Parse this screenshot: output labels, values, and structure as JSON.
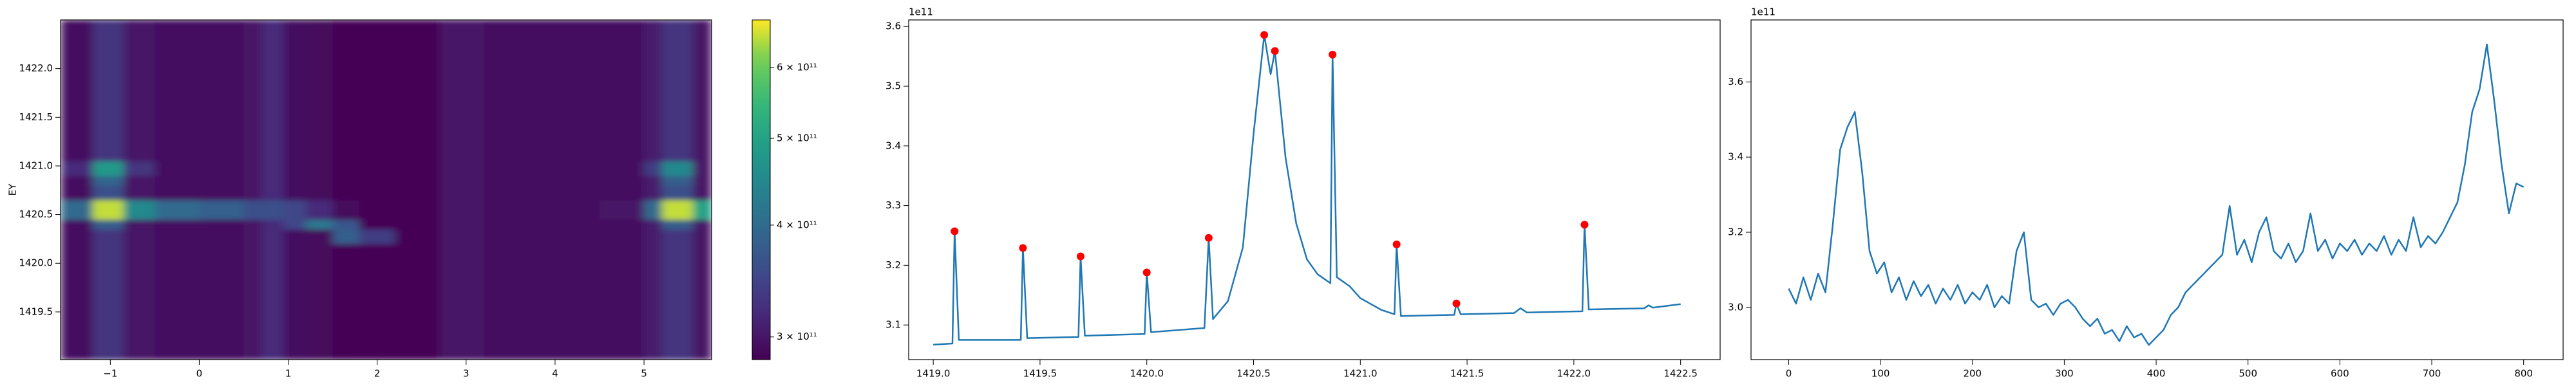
{
  "chart_data": [
    {
      "type": "heatmap",
      "ylabel": "EY",
      "cmap": "viridis",
      "xlim": [
        -1.56,
        5.76
      ],
      "ylim": [
        1419.01,
        1422.5
      ],
      "xticks": [
        {
          "value": -1,
          "label": "−1"
        },
        0,
        1,
        2,
        3,
        4,
        5
      ],
      "yticks": [
        1419.5,
        {
          "value": 1420,
          "label": "1420.0"
        },
        1420.5,
        {
          "value": 1421,
          "label": "1421.0"
        },
        1421.5,
        {
          "value": 1422,
          "label": "1422.0"
        }
      ],
      "x_edges": [
        -1.56,
        -1.2,
        -0.85,
        -0.5,
        0,
        0.5,
        0.7,
        0.95,
        1.2,
        1.5,
        1.8,
        2.2,
        2.7,
        3.2,
        3.6,
        4,
        4.5,
        5,
        5.2,
        5.55,
        5.76
      ],
      "y_edges": [
        1419.01,
        1419.5,
        1420.0,
        1420.2,
        1420.35,
        1420.45,
        1420.65,
        1420.8,
        1420.9,
        1421.05,
        1421.5,
        1422.0,
        1422.5
      ],
      "z": [
        [
          295000000000.0,
          330000000000.0,
          300000000000.0,
          295000000000.0,
          295000000000.0,
          300000000000.0,
          320000000000.0,
          295000000000.0,
          290000000000.0,
          285000000000.0,
          285000000000.0,
          285000000000.0,
          300000000000.0,
          295000000000.0,
          295000000000.0,
          295000000000.0,
          295000000000.0,
          305000000000.0,
          330000000000.0,
          300000000000.0
        ],
        [
          295000000000.0,
          330000000000.0,
          300000000000.0,
          295000000000.0,
          295000000000.0,
          300000000000.0,
          320000000000.0,
          295000000000.0,
          290000000000.0,
          285000000000.0,
          285000000000.0,
          285000000000.0,
          300000000000.0,
          295000000000.0,
          295000000000.0,
          295000000000.0,
          295000000000.0,
          305000000000.0,
          330000000000.0,
          300000000000.0
        ],
        [
          295000000000.0,
          330000000000.0,
          300000000000.0,
          295000000000.0,
          295000000000.0,
          300000000000.0,
          320000000000.0,
          295000000000.0,
          290000000000.0,
          285000000000.0,
          285000000000.0,
          285000000000.0,
          300000000000.0,
          295000000000.0,
          295000000000.0,
          295000000000.0,
          295000000000.0,
          305000000000.0,
          330000000000.0,
          300000000000.0
        ],
        [
          295000000000.0,
          330000000000.0,
          300000000000.0,
          295000000000.0,
          295000000000.0,
          300000000000.0,
          320000000000.0,
          295000000000.0,
          290000000000.0,
          380000000000.0,
          340000000000.0,
          285000000000.0,
          300000000000.0,
          295000000000.0,
          295000000000.0,
          295000000000.0,
          295000000000.0,
          305000000000.0,
          330000000000.0,
          300000000000.0
        ],
        [
          295000000000.0,
          380000000000.0,
          300000000000.0,
          295000000000.0,
          295000000000.0,
          300000000000.0,
          320000000000.0,
          350000000000.0,
          420000000000.0,
          370000000000.0,
          285000000000.0,
          285000000000.0,
          300000000000.0,
          295000000000.0,
          295000000000.0,
          295000000000.0,
          295000000000.0,
          305000000000.0,
          380000000000.0,
          300000000000.0
        ],
        [
          400000000000.0,
          650000000000.0,
          450000000000.0,
          400000000000.0,
          380000000000.0,
          360000000000.0,
          360000000000.0,
          350000000000.0,
          320000000000.0,
          290000000000.0,
          285000000000.0,
          285000000000.0,
          300000000000.0,
          295000000000.0,
          295000000000.0,
          295000000000.0,
          300000000000.0,
          400000000000.0,
          650000000000.0,
          500000000000.0
        ],
        [
          295000000000.0,
          360000000000.0,
          300000000000.0,
          295000000000.0,
          295000000000.0,
          300000000000.0,
          320000000000.0,
          295000000000.0,
          290000000000.0,
          285000000000.0,
          285000000000.0,
          285000000000.0,
          300000000000.0,
          295000000000.0,
          295000000000.0,
          295000000000.0,
          295000000000.0,
          305000000000.0,
          360000000000.0,
          300000000000.0
        ],
        [
          295000000000.0,
          390000000000.0,
          300000000000.0,
          295000000000.0,
          295000000000.0,
          300000000000.0,
          320000000000.0,
          295000000000.0,
          290000000000.0,
          285000000000.0,
          285000000000.0,
          285000000000.0,
          300000000000.0,
          295000000000.0,
          295000000000.0,
          295000000000.0,
          295000000000.0,
          305000000000.0,
          380000000000.0,
          300000000000.0
        ],
        [
          320000000000.0,
          480000000000.0,
          330000000000.0,
          295000000000.0,
          295000000000.0,
          300000000000.0,
          320000000000.0,
          295000000000.0,
          290000000000.0,
          285000000000.0,
          285000000000.0,
          285000000000.0,
          300000000000.0,
          295000000000.0,
          295000000000.0,
          295000000000.0,
          295000000000.0,
          340000000000.0,
          450000000000.0,
          300000000000.0
        ],
        [
          295000000000.0,
          330000000000.0,
          300000000000.0,
          295000000000.0,
          295000000000.0,
          300000000000.0,
          320000000000.0,
          295000000000.0,
          290000000000.0,
          285000000000.0,
          285000000000.0,
          285000000000.0,
          300000000000.0,
          295000000000.0,
          295000000000.0,
          295000000000.0,
          295000000000.0,
          305000000000.0,
          330000000000.0,
          300000000000.0
        ],
        [
          295000000000.0,
          330000000000.0,
          300000000000.0,
          295000000000.0,
          295000000000.0,
          300000000000.0,
          320000000000.0,
          295000000000.0,
          290000000000.0,
          285000000000.0,
          285000000000.0,
          285000000000.0,
          300000000000.0,
          295000000000.0,
          295000000000.0,
          295000000000.0,
          295000000000.0,
          305000000000.0,
          330000000000.0,
          300000000000.0
        ],
        [
          295000000000.0,
          330000000000.0,
          300000000000.0,
          295000000000.0,
          295000000000.0,
          300000000000.0,
          320000000000.0,
          295000000000.0,
          290000000000.0,
          285000000000.0,
          285000000000.0,
          285000000000.0,
          300000000000.0,
          295000000000.0,
          295000000000.0,
          295000000000.0,
          295000000000.0,
          305000000000.0,
          330000000000.0,
          300000000000.0
        ]
      ],
      "colorbar": {
        "scale": "log",
        "clim": [
          283000000000.0,
          678000000000.0
        ],
        "ticks": [
          {
            "value": 300000000000.0,
            "label": "3 × 10¹¹"
          },
          {
            "value": 400000000000.0,
            "label": "4 × 10¹¹"
          },
          {
            "value": 500000000000.0,
            "label": "5 × 10¹¹"
          },
          {
            "value": 600000000000.0,
            "label": "6 × 10¹¹"
          }
        ]
      }
    },
    {
      "type": "line",
      "y_offset_label": "1e11",
      "xlim": [
        1418.885,
        1422.685
      ],
      "ylim": [
        304200000000.0,
        361100000000.0
      ],
      "xticks": [
        {
          "value": 1419,
          "label": "1419.0"
        },
        1419.5,
        {
          "value": 1420,
          "label": "1420.0"
        },
        1420.5,
        {
          "value": 1421,
          "label": "1421.0"
        },
        1421.5,
        {
          "value": 1422,
          "label": "1422.0"
        },
        1422.5
      ],
      "yticks": [
        {
          "value": 310000000000.0,
          "label": "3.1"
        },
        {
          "value": 320000000000.0,
          "label": "3.2"
        },
        {
          "value": 330000000000.0,
          "label": "3.3"
        },
        {
          "value": 340000000000.0,
          "label": "3.4"
        },
        {
          "value": 350000000000.0,
          "label": "3.5"
        },
        {
          "value": 360000000000.0,
          "label": "3.6"
        }
      ],
      "series": [
        {
          "style": "line",
          "color": "#1f77b4",
          "x": [
            1419.0,
            1419.09,
            1419.1,
            1419.12,
            1419.41,
            1419.42,
            1419.44,
            1419.68,
            1419.69,
            1419.71,
            1419.99,
            1420.0,
            1420.02,
            1420.27,
            1420.29,
            1420.31,
            1420.38,
            1420.45,
            1420.5,
            1420.55,
            1420.58,
            1420.6,
            1420.65,
            1420.7,
            1420.75,
            1420.8,
            1420.86,
            1420.87,
            1420.89,
            1420.95,
            1421.0,
            1421.1,
            1421.16,
            1421.17,
            1421.19,
            1421.44,
            1421.45,
            1421.47,
            1421.72,
            1421.75,
            1421.78,
            1422.04,
            1422.05,
            1422.07,
            1422.33,
            1422.35,
            1422.37,
            1422.5
          ],
          "values": [
            306700000000.0,
            306900000000.0,
            325700000000.0,
            307500000000.0,
            307500000000.0,
            322900000000.0,
            307800000000.0,
            308000000000.0,
            321500000000.0,
            308200000000.0,
            308500000000.0,
            318800000000.0,
            308800000000.0,
            309500000000.0,
            324600000000.0,
            311000000000.0,
            314000000000.0,
            323000000000.0,
            342000000000.0,
            358600000000.0,
            352000000000.0,
            355900000000.0,
            338000000000.0,
            327000000000.0,
            321000000000.0,
            318500000000.0,
            317000000000.0,
            355300000000.0,
            318000000000.0,
            316500000000.0,
            314500000000.0,
            312500000000.0,
            311800000000.0,
            323500000000.0,
            311500000000.0,
            311700000000.0,
            313600000000.0,
            311800000000.0,
            312000000000.0,
            312800000000.0,
            312100000000.0,
            312300000000.0,
            326800000000.0,
            312600000000.0,
            312800000000.0,
            313300000000.0,
            312900000000.0,
            313500000000.0
          ]
        },
        {
          "style": "markers",
          "color": "red",
          "x": [
            1419.1,
            1419.42,
            1419.69,
            1420.0,
            1420.29,
            1420.55,
            1420.6,
            1420.87,
            1421.17,
            1421.45,
            1422.05
          ],
          "values": [
            325700000000.0,
            322900000000.0,
            321500000000.0,
            318800000000.0,
            324600000000.0,
            358600000000.0,
            355900000000.0,
            355300000000.0,
            323500000000.0,
            313600000000.0,
            326800000000.0
          ]
        }
      ]
    },
    {
      "type": "line",
      "y_offset_label": "1e11",
      "xlim": [
        -41,
        843
      ],
      "ylim": [
        286100000000.0,
        376500000000.0
      ],
      "xticks": [
        0,
        100,
        200,
        300,
        400,
        500,
        600,
        700,
        800
      ],
      "yticks": [
        {
          "value": 300000000000.0,
          "label": "3.0"
        },
        {
          "value": 320000000000.0,
          "label": "3.2"
        },
        {
          "value": 340000000000.0,
          "label": "3.4"
        },
        {
          "value": 360000000000.0,
          "label": "3.6"
        }
      ],
      "series": [
        {
          "style": "line",
          "color": "#1f77b4",
          "x": [
            0,
            8,
            16,
            24,
            32,
            40,
            48,
            56,
            64,
            72,
            80,
            88,
            96,
            104,
            112,
            120,
            128,
            136,
            144,
            152,
            160,
            168,
            176,
            184,
            192,
            200,
            208,
            216,
            224,
            232,
            240,
            248,
            256,
            264,
            272,
            280,
            288,
            296,
            304,
            312,
            320,
            328,
            336,
            344,
            352,
            360,
            368,
            376,
            384,
            392,
            400,
            408,
            416,
            424,
            432,
            440,
            448,
            456,
            464,
            472,
            480,
            488,
            496,
            504,
            512,
            520,
            528,
            536,
            544,
            552,
            560,
            568,
            576,
            584,
            592,
            600,
            608,
            616,
            624,
            632,
            640,
            648,
            656,
            664,
            672,
            680,
            688,
            696,
            704,
            712,
            720,
            728,
            736,
            744,
            752,
            760,
            768,
            776,
            784,
            792,
            800
          ],
          "values": [
            305000000000.0,
            301000000000.0,
            308000000000.0,
            302000000000.0,
            309000000000.0,
            304000000000.0,
            322000000000.0,
            342000000000.0,
            348000000000.0,
            352000000000.0,
            336000000000.0,
            315000000000.0,
            309000000000.0,
            312000000000.0,
            304000000000.0,
            308000000000.0,
            302000000000.0,
            307000000000.0,
            303000000000.0,
            306000000000.0,
            301000000000.0,
            305000000000.0,
            302000000000.0,
            306000000000.0,
            301000000000.0,
            304000000000.0,
            302000000000.0,
            306000000000.0,
            300000000000.0,
            303000000000.0,
            301000000000.0,
            315000000000.0,
            320000000000.0,
            302000000000.0,
            300000000000.0,
            301000000000.0,
            298000000000.0,
            301000000000.0,
            302000000000.0,
            300000000000.0,
            297000000000.0,
            295000000000.0,
            297000000000.0,
            293000000000.0,
            294000000000.0,
            291000000000.0,
            295000000000.0,
            292000000000.0,
            293000000000.0,
            290000000000.0,
            292000000000.0,
            294000000000.0,
            298000000000.0,
            300000000000.0,
            304000000000.0,
            306000000000.0,
            308000000000.0,
            310000000000.0,
            312000000000.0,
            314000000000.0,
            327000000000.0,
            314000000000.0,
            318000000000.0,
            312000000000.0,
            320000000000.0,
            324000000000.0,
            315000000000.0,
            313000000000.0,
            317000000000.0,
            312000000000.0,
            315000000000.0,
            325000000000.0,
            315000000000.0,
            318000000000.0,
            313000000000.0,
            317000000000.0,
            315000000000.0,
            318000000000.0,
            314000000000.0,
            317000000000.0,
            315000000000.0,
            319000000000.0,
            314000000000.0,
            318000000000.0,
            315000000000.0,
            324000000000.0,
            316000000000.0,
            319000000000.0,
            317000000000.0,
            320000000000.0,
            324000000000.0,
            328000000000.0,
            338000000000.0,
            352000000000.0,
            358000000000.0,
            370000000000.0,
            355000000000.0,
            338000000000.0,
            325000000000.0,
            333000000000.0,
            332000000000.0
          ]
        }
      ]
    }
  ]
}
